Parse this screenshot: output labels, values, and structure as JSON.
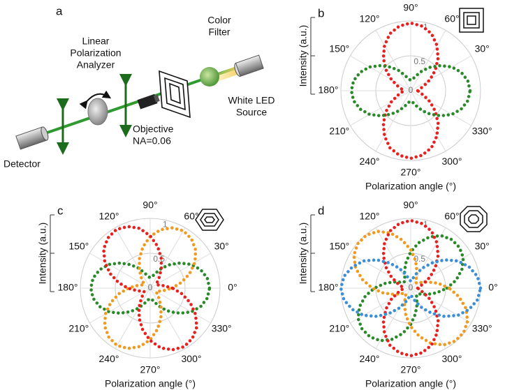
{
  "diagram": {
    "label": "a",
    "analyzer": [
      "Linear",
      "Polarization",
      "Analyzer"
    ],
    "filter": [
      "Color",
      "Filter"
    ],
    "source": [
      "White LED",
      "Source"
    ],
    "objective": [
      "Objective",
      "NA=0.06"
    ],
    "detector": "Detector"
  },
  "chart_data": [
    {
      "type": "polar",
      "label": "b",
      "ylabel": "Intensity (a.u.)",
      "xlabel": "Polarization angle (°)",
      "rlim": [
        0,
        1
      ],
      "rticks": [
        0,
        0.5,
        1
      ],
      "thetaticks": [
        {
          "value": 30,
          "label": "30°"
        },
        {
          "value": 60,
          "label": "60°"
        },
        {
          "value": 90,
          "label": "90°"
        },
        {
          "value": 120,
          "label": "120°"
        },
        {
          "value": 150,
          "label": "150°"
        },
        {
          "value": 180,
          "label": "180°"
        },
        {
          "value": 210,
          "label": "210°"
        },
        {
          "value": 240,
          "label": "240°"
        },
        {
          "value": 270,
          "label": "270°"
        },
        {
          "value": 300,
          "label": "300°"
        },
        {
          "value": 330,
          "label": "330°"
        }
      ],
      "theta": [
        0,
        10,
        20,
        30,
        40,
        50,
        60,
        70,
        80,
        90,
        100,
        110,
        120,
        130,
        140,
        150,
        160,
        170,
        180,
        190,
        200,
        210,
        220,
        230,
        240,
        250,
        260,
        270,
        280,
        290,
        300,
        310,
        320,
        330,
        340,
        350
      ],
      "series": [
        {
          "color": "#e8201f",
          "values": [
            0.1,
            0.13,
            0.2,
            0.32,
            0.46,
            0.61,
            0.75,
            0.87,
            0.94,
            0.97,
            0.94,
            0.87,
            0.75,
            0.61,
            0.46,
            0.32,
            0.2,
            0.13,
            0.1,
            0.13,
            0.2,
            0.32,
            0.46,
            0.61,
            0.75,
            0.87,
            0.94,
            0.97,
            0.94,
            0.87,
            0.75,
            0.61,
            0.46,
            0.32,
            0.2,
            0.13
          ]
        },
        {
          "color": "#2a8a2a",
          "values": [
            0.85,
            0.83,
            0.77,
            0.68,
            0.56,
            0.44,
            0.33,
            0.23,
            0.17,
            0.15,
            0.17,
            0.23,
            0.33,
            0.44,
            0.56,
            0.68,
            0.77,
            0.83,
            0.85,
            0.83,
            0.77,
            0.68,
            0.56,
            0.44,
            0.33,
            0.23,
            0.17,
            0.15,
            0.17,
            0.23,
            0.33,
            0.44,
            0.56,
            0.68,
            0.77,
            0.83
          ]
        }
      ]
    },
    {
      "type": "polar",
      "label": "c",
      "ylabel": "Intensity (a.u.)",
      "xlabel": "Polarization angle (°)",
      "rlim": [
        0,
        1
      ],
      "rticks": [
        0,
        0.5,
        1
      ],
      "thetaticks": [
        {
          "value": 0,
          "label": "0°"
        },
        {
          "value": 30,
          "label": "30°"
        },
        {
          "value": 60,
          "label": "60°"
        },
        {
          "value": 90,
          "label": "90°"
        },
        {
          "value": 120,
          "label": "120°"
        },
        {
          "value": 150,
          "label": "150°"
        },
        {
          "value": 180,
          "label": "180°"
        },
        {
          "value": 210,
          "label": "210°"
        },
        {
          "value": 240,
          "label": "240°"
        },
        {
          "value": 270,
          "label": "270°"
        },
        {
          "value": 300,
          "label": "300°"
        },
        {
          "value": 330,
          "label": "330°"
        }
      ],
      "theta": [
        0,
        10,
        20,
        30,
        40,
        50,
        60,
        70,
        80,
        90,
        100,
        110,
        120,
        130,
        140,
        150,
        160,
        170,
        180,
        190,
        200,
        210,
        220,
        230,
        240,
        250,
        260,
        270,
        280,
        290,
        300,
        310,
        320,
        330,
        340,
        350
      ],
      "series": [
        {
          "color": "#2a8a2a",
          "values": [
            0.85,
            0.83,
            0.77,
            0.68,
            0.56,
            0.44,
            0.33,
            0.23,
            0.17,
            0.15,
            0.17,
            0.23,
            0.33,
            0.44,
            0.56,
            0.68,
            0.77,
            0.83,
            0.85,
            0.83,
            0.77,
            0.68,
            0.56,
            0.44,
            0.33,
            0.23,
            0.17,
            0.15,
            0.17,
            0.23,
            0.33,
            0.44,
            0.56,
            0.68,
            0.77,
            0.83
          ]
        },
        {
          "color": "#f09a20",
          "values": [
            0.31,
            0.45,
            0.6,
            0.74,
            0.85,
            0.92,
            0.95,
            0.92,
            0.85,
            0.74,
            0.6,
            0.45,
            0.31,
            0.2,
            0.13,
            0.1,
            0.13,
            0.2,
            0.31,
            0.45,
            0.6,
            0.74,
            0.85,
            0.92,
            0.95,
            0.92,
            0.85,
            0.74,
            0.6,
            0.45,
            0.31,
            0.2,
            0.13,
            0.1,
            0.13,
            0.2
          ]
        },
        {
          "color": "#e8201f",
          "values": [
            0.32,
            0.2,
            0.13,
            0.1,
            0.13,
            0.2,
            0.32,
            0.46,
            0.61,
            0.75,
            0.87,
            0.94,
            0.97,
            0.94,
            0.87,
            0.75,
            0.61,
            0.46,
            0.32,
            0.2,
            0.13,
            0.1,
            0.13,
            0.2,
            0.32,
            0.46,
            0.61,
            0.75,
            0.87,
            0.94,
            0.97,
            0.94,
            0.87,
            0.75,
            0.61,
            0.46
          ]
        }
      ]
    },
    {
      "type": "polar",
      "label": "d",
      "ylabel": "Intensity (a.u.)",
      "xlabel": "Polarization angle (°)",
      "rlim": [
        0,
        1
      ],
      "rticks": [
        0,
        0.5,
        1
      ],
      "thetaticks": [
        {
          "value": 0,
          "label": "0°"
        },
        {
          "value": 30,
          "label": "30°"
        },
        {
          "value": 60,
          "label": "60°"
        },
        {
          "value": 90,
          "label": "90°"
        },
        {
          "value": 120,
          "label": "120°"
        },
        {
          "value": 150,
          "label": "150°"
        },
        {
          "value": 180,
          "label": "180°"
        },
        {
          "value": 210,
          "label": "210°"
        },
        {
          "value": 240,
          "label": "240°"
        },
        {
          "value": 270,
          "label": "270°"
        },
        {
          "value": 300,
          "label": "300°"
        },
        {
          "value": 330,
          "label": "330°"
        }
      ],
      "theta": [
        0,
        10,
        20,
        30,
        40,
        50,
        60,
        70,
        80,
        90,
        100,
        110,
        120,
        130,
        140,
        150,
        160,
        170,
        180,
        190,
        200,
        210,
        220,
        230,
        240,
        250,
        260,
        270,
        280,
        290,
        300,
        310,
        320,
        330,
        340,
        350
      ],
      "series": [
        {
          "color": "#2a8a2a",
          "values": [
            0.52,
            0.66,
            0.78,
            0.87,
            0.91,
            0.91,
            0.87,
            0.78,
            0.66,
            0.52,
            0.38,
            0.26,
            0.17,
            0.13,
            0.13,
            0.17,
            0.26,
            0.38,
            0.52,
            0.66,
            0.78,
            0.87,
            0.91,
            0.91,
            0.87,
            0.78,
            0.66,
            0.52,
            0.38,
            0.26,
            0.17,
            0.13,
            0.13,
            0.17,
            0.26,
            0.38
          ]
        },
        {
          "color": "#f09a20",
          "values": [
            0.55,
            0.4,
            0.26,
            0.16,
            0.11,
            0.11,
            0.16,
            0.26,
            0.4,
            0.55,
            0.7,
            0.84,
            0.94,
            0.99,
            0.99,
            0.94,
            0.84,
            0.7,
            0.55,
            0.4,
            0.26,
            0.16,
            0.11,
            0.11,
            0.16,
            0.26,
            0.4,
            0.55,
            0.7,
            0.84,
            0.94,
            0.99,
            0.99,
            0.94,
            0.84,
            0.7
          ]
        },
        {
          "color": "#e8201f",
          "values": [
            0.1,
            0.13,
            0.2,
            0.32,
            0.46,
            0.61,
            0.75,
            0.87,
            0.94,
            0.97,
            0.94,
            0.87,
            0.75,
            0.61,
            0.46,
            0.32,
            0.2,
            0.13,
            0.1,
            0.13,
            0.2,
            0.32,
            0.46,
            0.61,
            0.75,
            0.87,
            0.94,
            0.97,
            0.94,
            0.87,
            0.75,
            0.61,
            0.46,
            0.32,
            0.2,
            0.13
          ]
        },
        {
          "color": "#3a8fd6",
          "values": [
            1.0,
            0.97,
            0.89,
            0.78,
            0.63,
            0.47,
            0.33,
            0.21,
            0.13,
            0.1,
            0.13,
            0.21,
            0.33,
            0.47,
            0.63,
            0.78,
            0.89,
            0.97,
            1.0,
            0.97,
            0.89,
            0.78,
            0.63,
            0.47,
            0.33,
            0.21,
            0.13,
            0.1,
            0.13,
            0.21,
            0.33,
            0.47,
            0.63,
            0.78,
            0.89,
            0.97
          ]
        }
      ]
    }
  ]
}
